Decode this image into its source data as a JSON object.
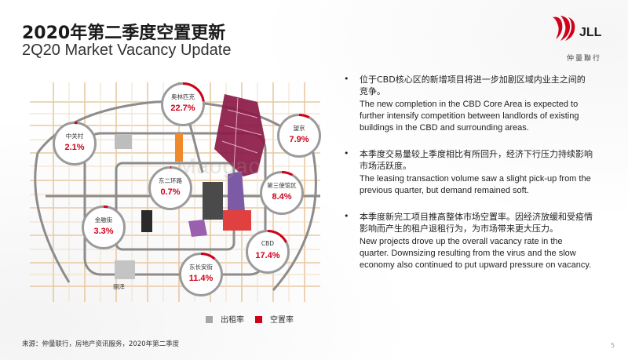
{
  "header": {
    "title_cn": "2020年第二季度空置更新",
    "title_en": "2Q20 Market Vacancy Update"
  },
  "logo": {
    "text": "JLL",
    "subtitle": "仲量聯行",
    "color": "#d0021b"
  },
  "map": {
    "watermark": "Maogao",
    "bubbles": [
      {
        "name": "奥林匹克",
        "value": "22.7%"
      },
      {
        "name": "中关村",
        "value": "2.1%"
      },
      {
        "name": "望京",
        "value": "7.9%"
      },
      {
        "name": "东二环路",
        "value": "0.7%"
      },
      {
        "name": "第三使馆区",
        "value": "8.4%"
      },
      {
        "name": "金融街",
        "value": "3.3%"
      },
      {
        "name": "CBD",
        "value": "17.4%"
      },
      {
        "name": "东长安街",
        "value": "11.4%"
      }
    ],
    "district_label": "丽泽",
    "legend": [
      {
        "label": "出租率",
        "color": "#a6a6a6"
      },
      {
        "label": "空置率",
        "color": "#d0021b"
      }
    ]
  },
  "bullets": [
    {
      "cn": "位于CBD核心区的新增项目将进一步加剧区域内业主之间的竞争。",
      "en": "The new completion in the CBD Core Area is expected to further intensify competition between landlords of existing buildings in the CBD and surrounding areas."
    },
    {
      "cn": "本季度交易量较上季度相比有所回升，经济下行压力持续影响市场活跃度。",
      "en": "The leasing transaction volume saw a slight pick-up from the previous quarter, but demand remained soft."
    },
    {
      "cn": "本季度新完工项目推高整体市场空置率。因经济放缓和受疫情影响而产生的租户退租行为，为市场带来更大压力。",
      "en": "New projects drove up the overall vacancy rate in the quarter. Downsizing resulting from the virus and the slow economy also continued to put upward pressure on vacancy."
    }
  ],
  "footer": {
    "source": "来源：仲量联行，房地产资讯服务，2020年第二季度",
    "page": "5"
  }
}
